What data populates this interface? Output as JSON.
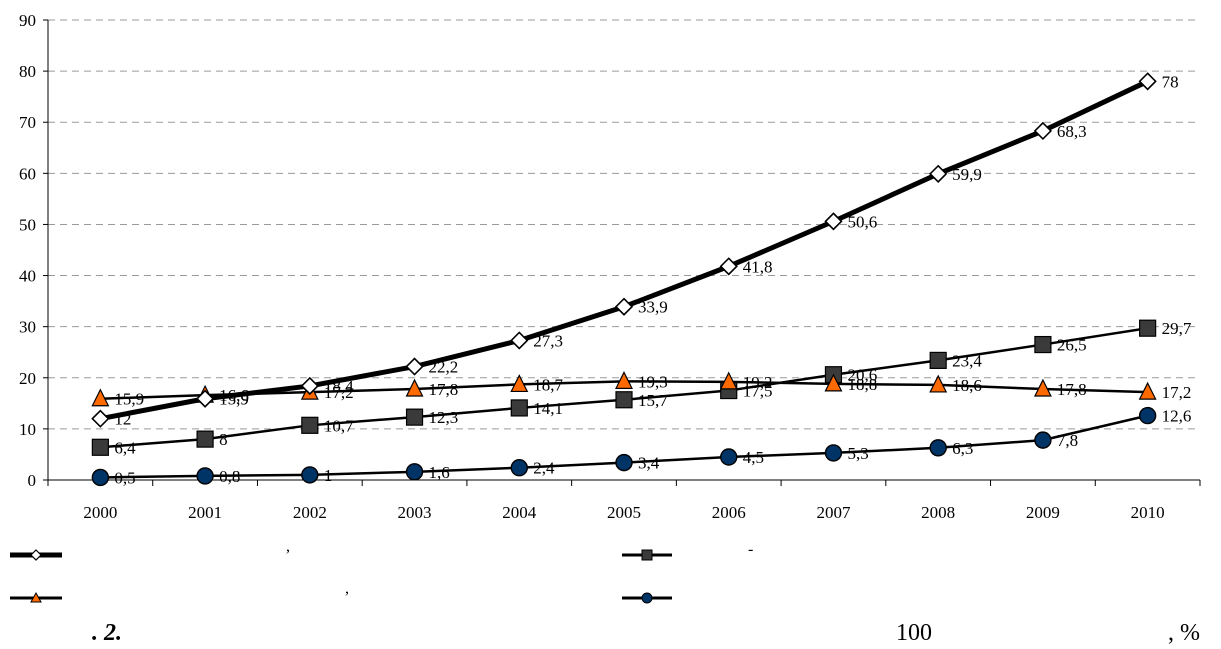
{
  "chart_data": {
    "type": "line",
    "x": [
      "2000",
      "2001",
      "2002",
      "2003",
      "2004",
      "2005",
      "2006",
      "2007",
      "2008",
      "2009",
      "2010"
    ],
    "ylim": [
      0,
      90
    ],
    "yticks": [
      0,
      10,
      20,
      30,
      40,
      50,
      60,
      70,
      80,
      90
    ],
    "grid": true,
    "legend_position": "bottom",
    "series": [
      {
        "marker": "diamond",
        "color": "#000000",
        "fill": "#ffffff",
        "line_width": 5,
        "values": [
          12,
          15.9,
          18.4,
          22.2,
          27.3,
          33.9,
          41.8,
          50.6,
          59.9,
          68.3,
          78
        ],
        "labels": [
          "12",
          "15,9",
          "18,4",
          "22,2",
          "27,3",
          "33,9",
          "41,8",
          "50,6",
          "59,9",
          "68,3",
          "78"
        ]
      },
      {
        "marker": "square",
        "color": "#000000",
        "fill": "#3a3a3a",
        "line_width": 2.5,
        "values": [
          6.4,
          8,
          10.7,
          12.3,
          14.1,
          15.7,
          17.5,
          20.6,
          23.4,
          26.5,
          29.7
        ],
        "labels": [
          "6,4",
          "8",
          "10,7",
          "12,3",
          "14,1",
          "15,7",
          "17,5",
          "20,6",
          "23,4",
          "26,5",
          "29,7"
        ]
      },
      {
        "marker": "triangle",
        "color": "#000000",
        "fill": "#ff6a00",
        "line_width": 2.5,
        "values": [
          15.9,
          16.6,
          17.2,
          17.8,
          18.7,
          19.3,
          19.2,
          18.8,
          18.6,
          17.8,
          17.2
        ],
        "labels": [
          "15,9",
          "16,6",
          "17,2",
          "17,8",
          "18,7",
          "19,3",
          "19,2",
          "18,8",
          "18,6",
          "17,8",
          "17,2"
        ]
      },
      {
        "marker": "circle",
        "color": "#000000",
        "fill": "#003366",
        "line_width": 2.5,
        "values": [
          0.5,
          0.8,
          1,
          1.6,
          2.4,
          3.4,
          4.5,
          5.3,
          6.3,
          7.8,
          12.6
        ],
        "labels": [
          "0,5",
          "0,8",
          "1",
          "1,6",
          "2,4",
          "3,4",
          "4,5",
          "5,3",
          "6,3",
          "7,8",
          "12,6"
        ]
      }
    ]
  },
  "legend": {
    "items": [
      {
        "marker": "diamond",
        "text": ","
      },
      {
        "marker": "square",
        "text": "-"
      },
      {
        "marker": "triangle",
        "text": ","
      },
      {
        "marker": "circle",
        "text": ""
      }
    ]
  },
  "caption": {
    "fig": ". 2.",
    "value": "100",
    "unit": ", %"
  }
}
